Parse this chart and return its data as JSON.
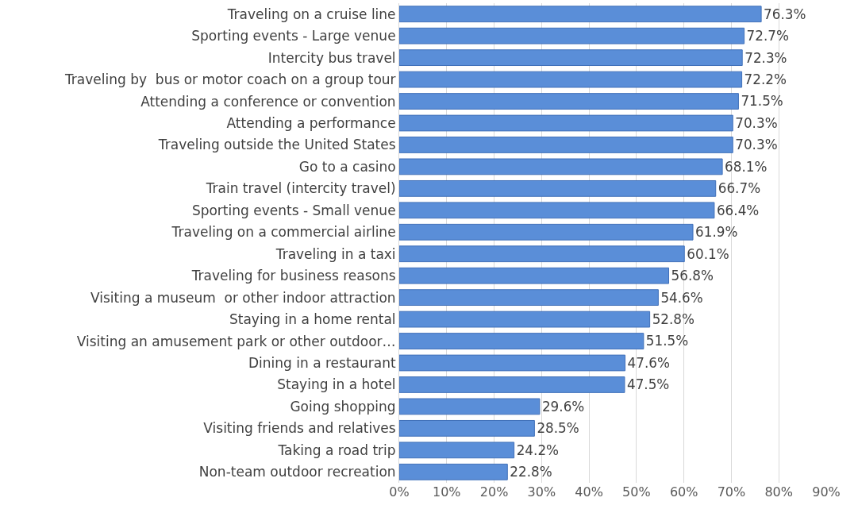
{
  "chart_data": {
    "type": "bar",
    "orientation": "horizontal",
    "categories": [
      "Traveling on a cruise line",
      "Sporting events - Large venue",
      "Intercity bus travel",
      "Traveling by  bus or motor coach on a group tour",
      "Attending a conference or convention",
      "Attending a performance",
      "Traveling outside the United States",
      "Go to a casino",
      "Train travel (intercity travel)",
      "Sporting events - Small venue",
      "Traveling on a commercial airline",
      "Traveling in a taxi",
      "Traveling for business reasons",
      "Visiting a museum  or other indoor attraction",
      "Staying in a home rental",
      "Visiting an amusement park or other outdoor…",
      "Dining in a restaurant",
      "Staying in a hotel",
      "Going shopping",
      "Visiting friends and relatives",
      "Taking a road trip",
      "Non-team outdoor recreation"
    ],
    "values": [
      76.3,
      72.7,
      72.3,
      72.2,
      71.5,
      70.3,
      70.3,
      68.1,
      66.7,
      66.4,
      61.9,
      60.1,
      56.8,
      54.6,
      52.8,
      51.5,
      47.6,
      47.5,
      29.6,
      28.5,
      24.2,
      22.8
    ],
    "value_labels": [
      "76.3%",
      "72.7%",
      "72.3%",
      "72.2%",
      "71.5%",
      "70.3%",
      "70.3%",
      "68.1%",
      "66.7%",
      "66.4%",
      "61.9%",
      "60.1%",
      "56.8%",
      "54.6%",
      "52.8%",
      "51.5%",
      "47.6%",
      "47.5%",
      "29.6%",
      "28.5%",
      "24.2%",
      "22.8%"
    ],
    "color": "#5a8ed8",
    "xlim": [
      0,
      90
    ],
    "xticks": [
      {
        "value": 0,
        "label": "0%"
      },
      {
        "value": 10,
        "label": "10%"
      },
      {
        "value": 20,
        "label": "20%"
      },
      {
        "value": 30,
        "label": "30%"
      },
      {
        "value": 40,
        "label": "40%"
      },
      {
        "value": 50,
        "label": "50%"
      },
      {
        "value": 60,
        "label": "60%"
      },
      {
        "value": 70,
        "label": "70%"
      },
      {
        "value": 80,
        "label": "80%"
      },
      {
        "value": 90,
        "label": "90%"
      }
    ],
    "grid": "x"
  }
}
